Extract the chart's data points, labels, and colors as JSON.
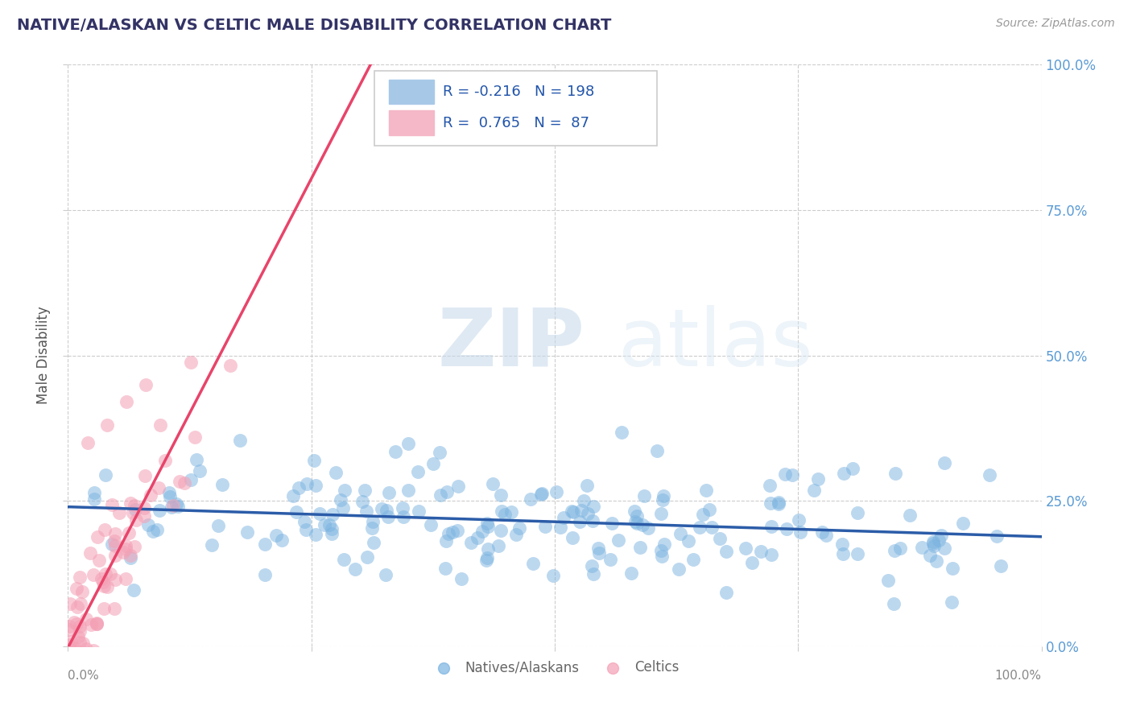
{
  "title": "NATIVE/ALASKAN VS CELTIC MALE DISABILITY CORRELATION CHART",
  "source": "Source: ZipAtlas.com",
  "ylabel": "Male Disability",
  "watermark_zip": "ZIP",
  "watermark_atlas": "atlas",
  "legend_blue_R": "-0.216",
  "legend_blue_N": "198",
  "legend_pink_R": "0.765",
  "legend_pink_N": "87",
  "xlim": [
    0.0,
    1.0
  ],
  "ylim": [
    0.0,
    1.0
  ],
  "xticks": [
    0.0,
    0.25,
    0.5,
    0.75,
    1.0
  ],
  "yticks": [
    0.0,
    0.25,
    0.5,
    0.75,
    1.0
  ],
  "xticklabels": [
    "0.0%",
    "",
    "",
    "",
    "100.0%"
  ],
  "yticklabels": [
    "0.0%",
    "25.0%",
    "50.0%",
    "75.0%",
    "100.0%"
  ],
  "grid_color": "#cccccc",
  "title_color": "#333366",
  "title_fontsize": 14,
  "axis_label_color": "#555555",
  "tick_label_color_right": "#5b9bd5",
  "blue_scatter_color": "#7ab3e0",
  "pink_scatter_color": "#f4a0b5",
  "blue_line_color": "#2b5ca8",
  "pink_line_color": "#e8446a",
  "blue_R": -0.216,
  "blue_N": 198,
  "pink_R": 0.765,
  "pink_N": 87,
  "background_color": "#ffffff",
  "legend_patch_blue": "#a8c8e8",
  "legend_patch_pink": "#f4b8c8"
}
